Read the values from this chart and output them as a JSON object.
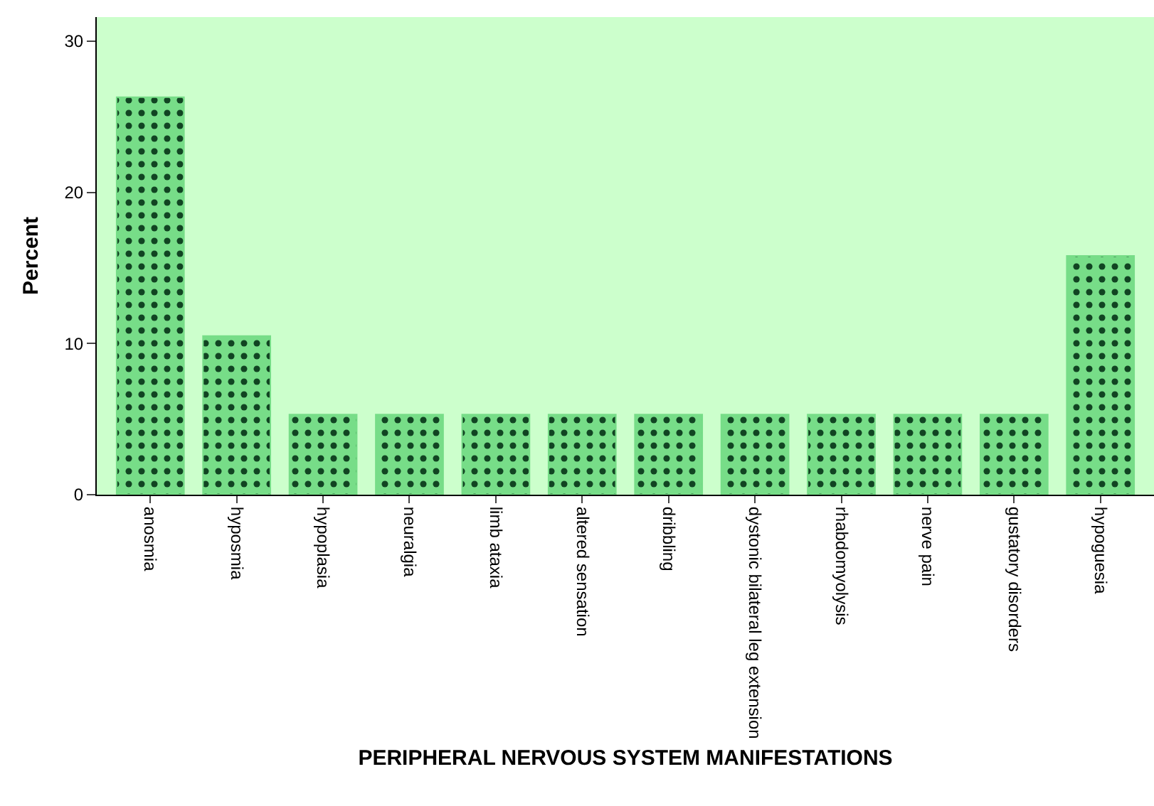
{
  "chart_data": {
    "type": "bar",
    "xlabel": "PERIPHERAL NERVOUS SYSTEM MANIFESTATIONS",
    "ylabel": "Percent",
    "categories": [
      "anosmia",
      "hyposmia",
      "hypoplasia",
      "neuralgia",
      "limb ataxia",
      "altered sensation",
      "dribbling",
      "dystonic bilateral leg extension",
      "rhabdomyolysis",
      "nerve pain",
      "gustatory disorders",
      "hypoguesia"
    ],
    "values": [
      26.3,
      10.5,
      5.3,
      5.3,
      5.3,
      5.3,
      5.3,
      5.3,
      5.3,
      5.3,
      5.3,
      15.8
    ],
    "color": "#77dd88",
    "ylim": [
      0,
      31.6
    ],
    "yticks": [
      0,
      10,
      20,
      30
    ],
    "grid": false,
    "legend": false
  }
}
